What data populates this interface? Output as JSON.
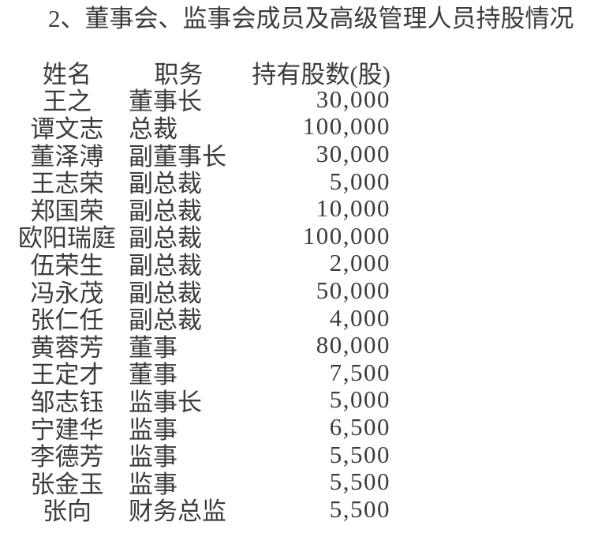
{
  "page": {
    "colors": {
      "background": "#ffffff",
      "text": "#3c3c3c"
    }
  },
  "document": {
    "section_title": "2、董事会、监事会成员及高级管理人员持股情况",
    "table": {
      "headers": {
        "name": "姓名",
        "position": "职务",
        "shares": "持有股数(股)"
      },
      "rows": [
        {
          "name": "王之",
          "position": "董事长",
          "shares": "30,000"
        },
        {
          "name": "谭文志",
          "position": "总裁",
          "shares": "100,000"
        },
        {
          "name": "董泽溥",
          "position": "副董事长",
          "shares": "30,000"
        },
        {
          "name": "王志荣",
          "position": "副总裁",
          "shares": "5,000"
        },
        {
          "name": "郑国荣",
          "position": "副总裁",
          "shares": "10,000"
        },
        {
          "name": "欧阳瑞庭",
          "position": "副总裁",
          "shares": "100,000"
        },
        {
          "name": "伍荣生",
          "position": "副总裁",
          "shares": "2,000"
        },
        {
          "name": "冯永茂",
          "position": "副总裁",
          "shares": "50,000"
        },
        {
          "name": "张仁任",
          "position": "副总裁",
          "shares": "4,000"
        },
        {
          "name": "黄蓉芳",
          "position": "董事",
          "shares": "80,000"
        },
        {
          "name": "王定才",
          "position": "董事",
          "shares": "7,500"
        },
        {
          "name": "邹志钰",
          "position": "监事长",
          "shares": "5,000"
        },
        {
          "name": "宁建华",
          "position": "监事",
          "shares": "6,500"
        },
        {
          "name": "李德芳",
          "position": "监事",
          "shares": "5,500"
        },
        {
          "name": "张金玉",
          "position": "监事",
          "shares": "5,500"
        },
        {
          "name": "张向",
          "position": "财务总监",
          "shares": "5,500"
        }
      ]
    }
  }
}
